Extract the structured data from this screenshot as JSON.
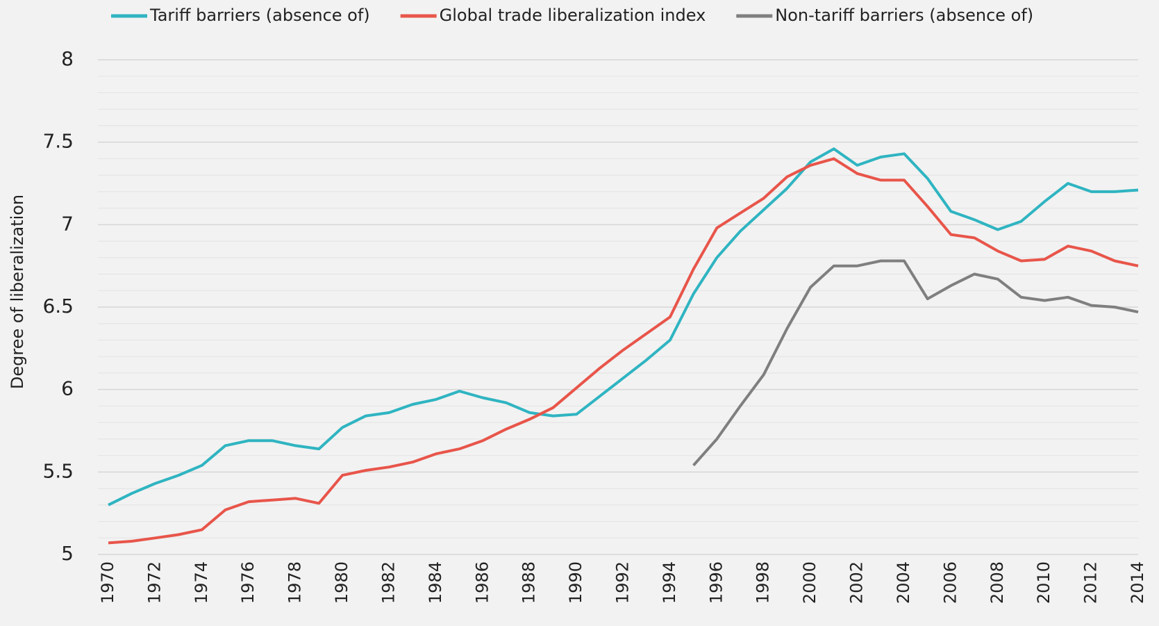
{
  "chart_data": {
    "type": "line",
    "y_label": "Degree of liberalization",
    "x": [
      1970,
      1971,
      1972,
      1973,
      1974,
      1975,
      1976,
      1977,
      1978,
      1979,
      1980,
      1981,
      1982,
      1983,
      1984,
      1985,
      1986,
      1987,
      1988,
      1989,
      1990,
      1991,
      1992,
      1993,
      1994,
      1995,
      1996,
      1997,
      1998,
      1999,
      2000,
      2001,
      2002,
      2003,
      2004,
      2005,
      2006,
      2007,
      2008,
      2009,
      2010,
      2011,
      2012,
      2013,
      2014
    ],
    "series": [
      {
        "name": "Tariff barriers (absence of)",
        "color": "#2fb4c1",
        "values": [
          5.3,
          5.37,
          5.43,
          5.48,
          5.54,
          5.66,
          5.69,
          5.69,
          5.66,
          5.64,
          5.77,
          5.84,
          5.86,
          5.91,
          5.94,
          5.99,
          5.95,
          5.92,
          5.86,
          5.84,
          5.85,
          5.96,
          6.07,
          6.18,
          6.3,
          6.58,
          6.8,
          6.96,
          7.09,
          7.22,
          7.38,
          7.46,
          7.36,
          7.41,
          7.43,
          7.28,
          7.08,
          7.03,
          6.97,
          7.02,
          7.14,
          7.25,
          7.2,
          7.2,
          7.21
        ]
      },
      {
        "name": "Global trade liberalization index",
        "color": "#e8554a",
        "values": [
          5.07,
          5.08,
          5.1,
          5.12,
          5.15,
          5.27,
          5.32,
          5.33,
          5.34,
          5.31,
          5.48,
          5.51,
          5.53,
          5.56,
          5.61,
          5.64,
          5.69,
          5.76,
          5.82,
          5.89,
          6.01,
          6.13,
          6.24,
          6.34,
          6.44,
          6.73,
          6.98,
          7.07,
          7.16,
          7.29,
          7.36,
          7.4,
          7.31,
          7.27,
          7.27,
          7.11,
          6.94,
          6.92,
          6.84,
          6.78,
          6.79,
          6.87,
          6.84,
          6.78,
          6.75
        ]
      },
      {
        "name": "Non-tariff barriers (absence of)",
        "color": "#7f7f7f",
        "values": [
          null,
          null,
          null,
          null,
          null,
          null,
          null,
          null,
          null,
          null,
          null,
          null,
          null,
          null,
          null,
          null,
          null,
          null,
          null,
          null,
          null,
          null,
          null,
          null,
          null,
          5.54,
          5.7,
          5.9,
          6.09,
          6.37,
          6.62,
          6.75,
          6.75,
          6.78,
          6.78,
          6.55,
          6.63,
          6.7,
          6.67,
          6.56,
          6.54,
          6.56,
          6.51,
          6.5,
          6.47
        ]
      }
    ],
    "xlim": [
      1970,
      2014
    ],
    "xticks": [
      1970,
      1972,
      1974,
      1976,
      1978,
      1980,
      1982,
      1984,
      1986,
      1988,
      1990,
      1992,
      1994,
      1996,
      1998,
      2000,
      2002,
      2004,
      2006,
      2008,
      2010,
      2012,
      2014
    ],
    "ylim": [
      5,
      8
    ],
    "yticks": [
      5,
      5.5,
      6,
      6.5,
      7,
      7.5,
      8
    ],
    "minor_yticks": [
      5.1,
      5.2,
      5.3,
      5.4,
      5.6,
      5.7,
      5.8,
      5.9,
      6.1,
      6.2,
      6.3,
      6.4,
      6.6,
      6.7,
      6.8,
      6.9,
      7.1,
      7.2,
      7.3,
      7.4,
      7.6,
      7.7,
      7.8,
      7.9
    ],
    "grid": true,
    "legend": "top"
  }
}
